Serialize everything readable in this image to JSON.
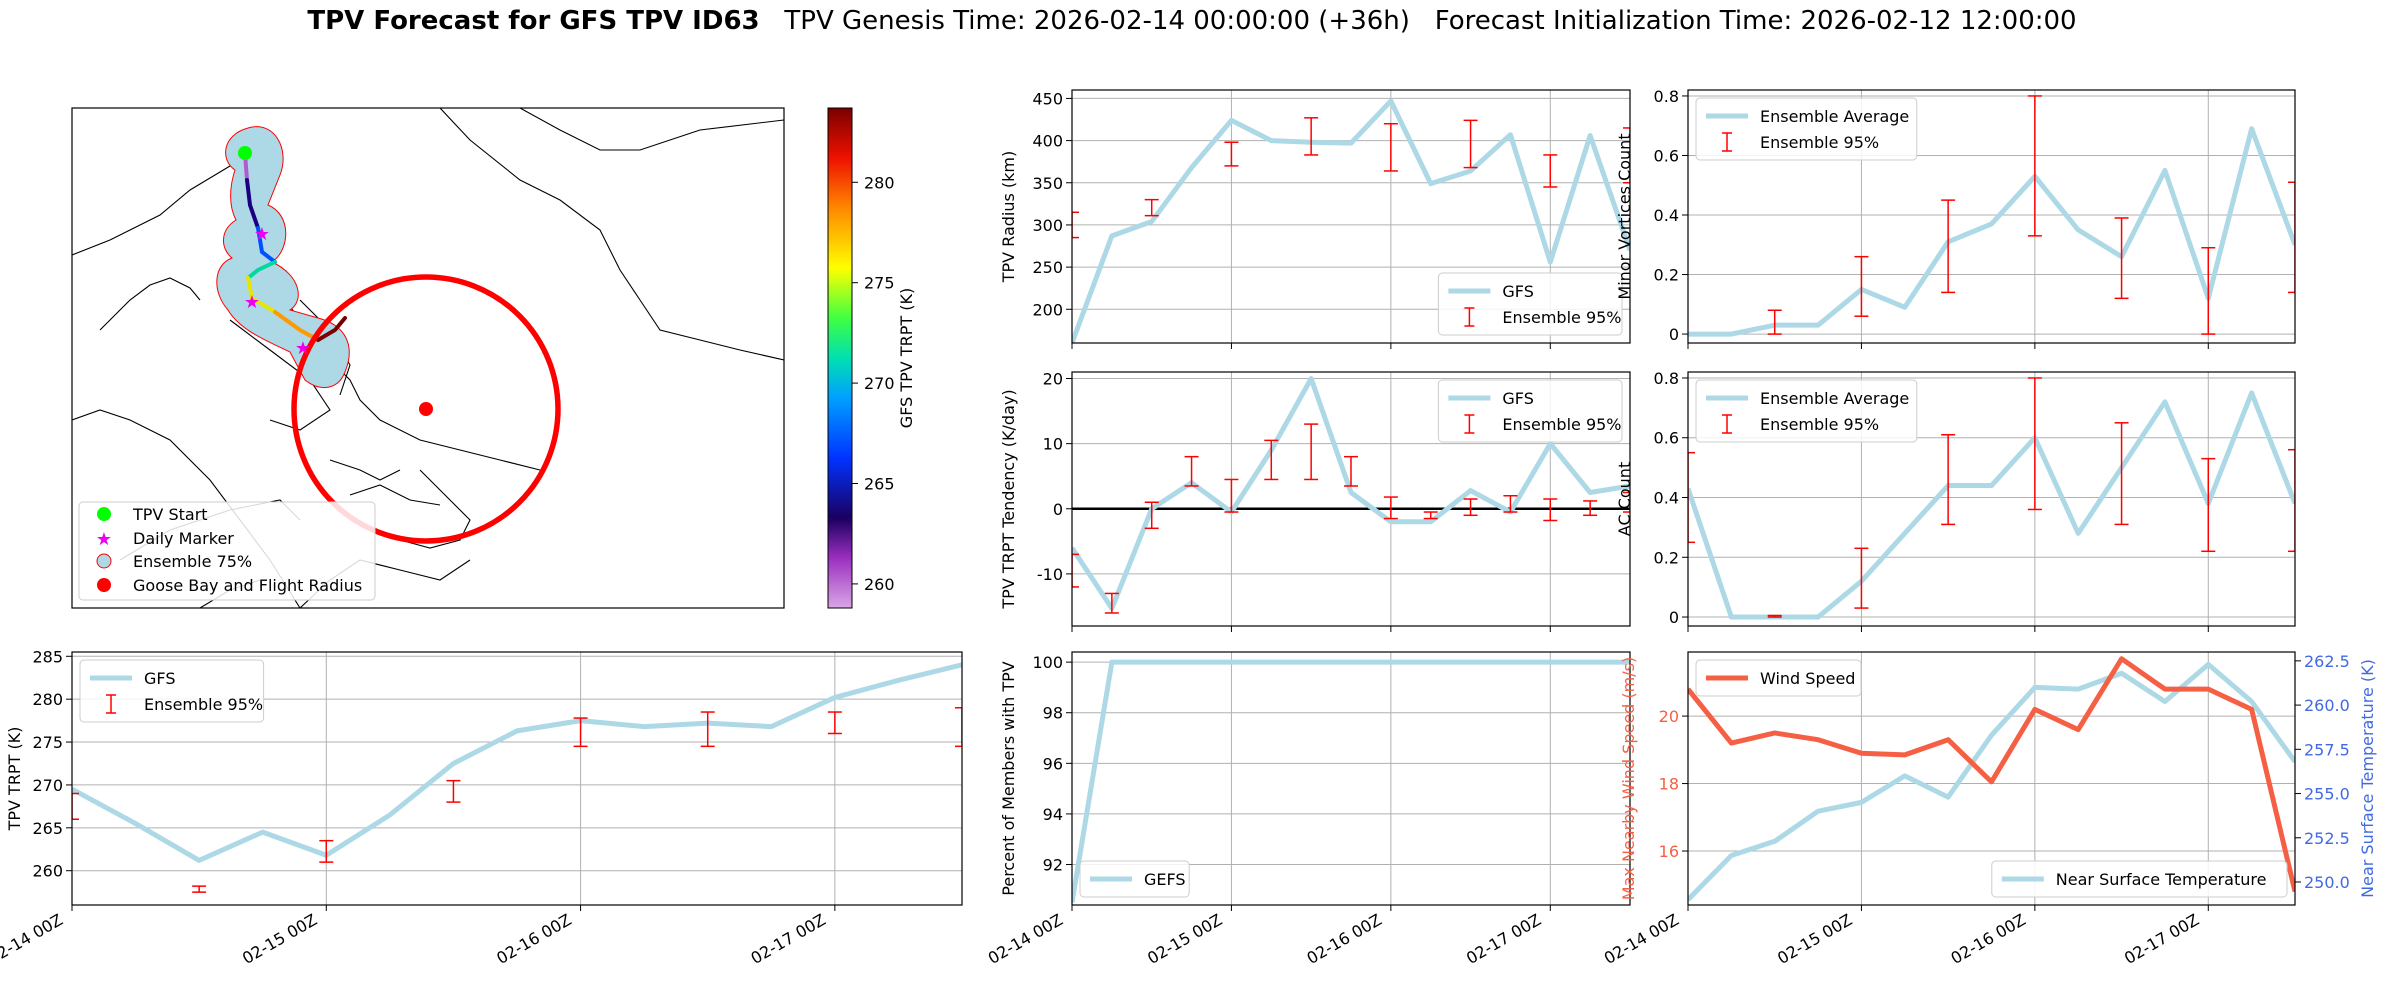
{
  "figure": {
    "title_bold": "TPV Forecast for GFS TPV ID63",
    "title_rest": "   TPV Genesis Time: 2026-02-14 00:00:00 (+36h)   Forecast Initialization Time: 2026-02-12 12:00:00",
    "time_ticks": [
      "02-14 00Z",
      "02-15 00Z",
      "02-16 00Z",
      "02-17 00Z"
    ]
  },
  "map": {
    "colorbar_label": "GFS TPV TRPT (K)",
    "colorbar_ticks": [
      "260",
      "265",
      "270",
      "275",
      "280"
    ],
    "legend": [
      "TPV Start",
      "Daily Marker",
      "Ensemble 75%",
      "Goose Bay and Flight Radius"
    ],
    "colors": {
      "ensemble_fill": "#add8e6",
      "flight_radius": "#ff0000",
      "start": "#00ff00",
      "marker": "#ee00ee"
    }
  },
  "chart_data": [
    {
      "id": "radius",
      "type": "line",
      "x": [
        0,
        0.25,
        0.5,
        0.75,
        1,
        1.25,
        1.5,
        1.75,
        2,
        2.25,
        2.5,
        2.75,
        3,
        3.25,
        3.5
      ],
      "series": [
        {
          "name": "GFS",
          "values": [
            160,
            287,
            304,
            368,
            424,
            400,
            398,
            397,
            447,
            349,
            364,
            407,
            256,
            406,
            270
          ]
        },
        {
          "name": "Ensemble 95%",
          "errorbar": [
            [
              0,
              285,
              315
            ],
            [
              0.5,
              311,
              330
            ],
            [
              1,
              370,
              398
            ],
            [
              1.5,
              383,
              427
            ],
            [
              2,
              364,
              420
            ],
            [
              2.5,
              368,
              424
            ],
            [
              3,
              345,
              383
            ],
            [
              3.5,
              350,
              415
            ]
          ]
        }
      ],
      "ylabel": "TPV Radius (km)",
      "ylim": [
        160,
        460
      ],
      "yticks": [
        200,
        250,
        300,
        350,
        400,
        450
      ],
      "legend_position": "lower-right"
    },
    {
      "id": "tendency",
      "type": "line",
      "x": [
        0,
        0.25,
        0.5,
        0.75,
        1,
        1.25,
        1.5,
        1.75,
        2,
        2.25,
        2.5,
        2.75,
        3,
        3.25,
        3.5
      ],
      "series": [
        {
          "name": "GFS",
          "values": [
            -6,
            -15.3,
            0,
            4,
            -0.5,
            9,
            20,
            2.5,
            -2,
            -2,
            2.8,
            -0.5,
            10,
            2.5,
            3.5
          ]
        },
        {
          "name": "Ensemble 95%",
          "errorbar": [
            [
              0,
              -12,
              -7
            ],
            [
              0.25,
              -16,
              -13
            ],
            [
              0.5,
              -3,
              1
            ],
            [
              0.75,
              3.5,
              8
            ],
            [
              1,
              -0.5,
              4.5
            ],
            [
              1.25,
              4.5,
              10.5
            ],
            [
              1.5,
              4.5,
              13
            ],
            [
              1.75,
              3.5,
              8
            ],
            [
              2,
              -1.5,
              1.8
            ],
            [
              2.25,
              -1.5,
              -0.5
            ],
            [
              2.5,
              -1,
              1.5
            ],
            [
              2.75,
              -0.5,
              2
            ],
            [
              3,
              -1.8,
              1.5
            ],
            [
              3.25,
              -1,
              1.2
            ],
            [
              3.5,
              -0.5,
              2.5
            ]
          ]
        }
      ],
      "ylabel": "TPV TRPT Tendency (K/day)",
      "ylim": [
        -18,
        21
      ],
      "yticks": [
        -10,
        0,
        10,
        20
      ],
      "zero_line": true,
      "legend_position": "upper-right"
    },
    {
      "id": "minor",
      "type": "line",
      "x": [
        0,
        0.25,
        0.5,
        0.75,
        1,
        1.25,
        1.5,
        1.75,
        2,
        2.25,
        2.5,
        2.75,
        3,
        3.25,
        3.5
      ],
      "series": [
        {
          "name": "Ensemble Average",
          "values": [
            0,
            0,
            0.03,
            0.03,
            0.15,
            0.09,
            0.31,
            0.37,
            0.53,
            0.35,
            0.26,
            0.55,
            0.12,
            0.69,
            0.3
          ]
        },
        {
          "name": "Ensemble 95%",
          "errorbar": [
            [
              0.5,
              0,
              0.08
            ],
            [
              1,
              0.06,
              0.26
            ],
            [
              1.5,
              0.14,
              0.45
            ],
            [
              2,
              0.33,
              0.8
            ],
            [
              2.5,
              0.12,
              0.39
            ],
            [
              3,
              0,
              0.29
            ],
            [
              3.5,
              0.14,
              0.51
            ]
          ]
        }
      ],
      "ylabel": "Minor Vortices Count",
      "ylim": [
        -0.03,
        0.82
      ],
      "yticks": [
        0.0,
        0.2,
        0.4,
        0.6,
        0.8
      ],
      "legend_position": "upper-left"
    },
    {
      "id": "ac",
      "type": "line",
      "x": [
        0,
        0.25,
        0.5,
        0.75,
        1,
        1.25,
        1.5,
        1.75,
        2,
        2.25,
        2.5,
        2.75,
        3,
        3.25,
        3.5
      ],
      "series": [
        {
          "name": "Ensemble Average",
          "values": [
            0.43,
            0,
            0,
            0,
            0.12,
            0.28,
            0.44,
            0.44,
            0.6,
            0.28,
            0.5,
            0.72,
            0.38,
            0.75,
            0.38
          ]
        },
        {
          "name": "Ensemble 95%",
          "errorbar": [
            [
              0,
              0.25,
              0.55
            ],
            [
              0.5,
              0,
              0.005
            ],
            [
              1,
              0.03,
              0.23
            ],
            [
              1.5,
              0.31,
              0.61
            ],
            [
              2,
              0.36,
              0.8
            ],
            [
              2.5,
              0.31,
              0.65
            ],
            [
              3,
              0.22,
              0.53
            ],
            [
              3.5,
              0.22,
              0.56
            ]
          ]
        }
      ],
      "ylabel": "AC Count",
      "ylim": [
        -0.03,
        0.82
      ],
      "yticks": [
        0.0,
        0.2,
        0.4,
        0.6,
        0.8
      ],
      "legend_position": "upper-left"
    },
    {
      "id": "trpt",
      "type": "line",
      "x": [
        0,
        0.25,
        0.5,
        0.75,
        1,
        1.25,
        1.5,
        1.75,
        2,
        2.25,
        2.5,
        2.75,
        3,
        3.25,
        3.5
      ],
      "series": [
        {
          "name": "GFS",
          "values": [
            269.5,
            265.5,
            261.2,
            264.5,
            261.8,
            266.5,
            272.5,
            276.3,
            277.5,
            276.8,
            277.2,
            276.8,
            280.2,
            282.2,
            284
          ]
        },
        {
          "name": "Ensemble 95%",
          "errorbar": [
            [
              0,
              266,
              269
            ],
            [
              0.5,
              257.5,
              258.2
            ],
            [
              1,
              261,
              263.5
            ],
            [
              1.5,
              268,
              270.5
            ],
            [
              2,
              274.5,
              277.8
            ],
            [
              2.5,
              274.5,
              278.5
            ],
            [
              3,
              276,
              278.5
            ],
            [
              3.5,
              274.5,
              279
            ]
          ]
        }
      ],
      "ylabel": "TPV TRPT (K)",
      "ylim": [
        256,
        285.5
      ],
      "yticks": [
        260,
        265,
        270,
        275,
        280,
        285
      ],
      "legend_position": "upper-left"
    },
    {
      "id": "percent",
      "type": "line",
      "x": [
        0,
        0.25,
        0.5,
        0.75,
        1,
        1.25,
        1.5,
        1.75,
        2,
        2.25,
        2.5,
        2.75,
        3,
        3.25,
        3.5
      ],
      "series": [
        {
          "name": "GEFS",
          "values": [
            90.5,
            100,
            100,
            100,
            100,
            100,
            100,
            100,
            100,
            100,
            100,
            100,
            100,
            100,
            100
          ]
        }
      ],
      "ylabel": "Percent of Members with TPV",
      "ylim": [
        90.4,
        100.4
      ],
      "yticks": [
        92,
        94,
        96,
        98,
        100
      ],
      "legend_position": "lower-left"
    },
    {
      "id": "wind",
      "type": "line",
      "x": [
        0,
        0.25,
        0.5,
        0.75,
        1,
        1.25,
        1.5,
        1.75,
        2,
        2.25,
        2.5,
        2.75,
        3,
        3.25,
        3.5
      ],
      "series": [
        {
          "name": "Wind Speed",
          "values": [
            20.8,
            19.2,
            19.5,
            19.3,
            18.9,
            18.85,
            19.3,
            18.05,
            20.2,
            19.6,
            21.7,
            20.8,
            20.8,
            20.2,
            14.8
          ]
        },
        {
          "name": "Near Surface Temperature",
          "axis": "right",
          "values": [
            249,
            251.5,
            252.3,
            254,
            254.5,
            256,
            254.8,
            258.3,
            261,
            260.9,
            261.8,
            260.2,
            262.3,
            260.2,
            256.8
          ]
        }
      ],
      "ylabel": "Max Nearby Wind Speed (m/s)",
      "ylim": [
        14.4,
        21.9
      ],
      "yticks": [
        16,
        18,
        20
      ],
      "y2label": "Near Surface Temperature (K)",
      "y2lim": [
        248.7,
        263
      ],
      "y2ticks": [
        "250.0",
        "252.5",
        "255.0",
        "257.5",
        "260.0",
        "262.5"
      ],
      "colors": {
        "wind": "#f56045",
        "temp": "#add8e6",
        "left_axis": "#f56045",
        "right_axis": "#4169e1"
      },
      "legend_position": "upper-left / lower-right"
    }
  ]
}
